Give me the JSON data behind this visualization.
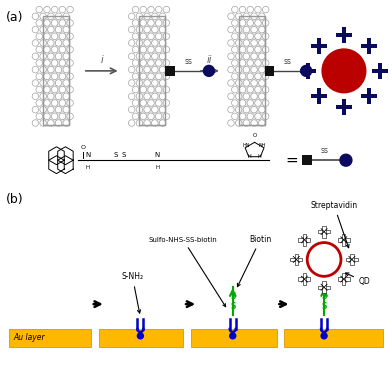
{
  "fig_width": 3.92,
  "fig_height": 3.74,
  "dpi": 100,
  "bg_color": "#ffffff",
  "label_a": "(a)",
  "label_b": "(b)",
  "cnt_fill": "#e8e8e8",
  "cnt_edge": "#999999",
  "cnt_line_color": "#aaaaaa",
  "black_sq_color": "#111111",
  "ss_color": "#444444",
  "biotin_dot_color": "#0a0a5e",
  "qd_red_color": "#bb0000",
  "qd_gear_color": "#0a0a5e",
  "arrow_gray": "#555555",
  "au_color": "#FFB800",
  "au_edge_color": "#CC8800",
  "blue_color": "#0000cc",
  "green_color": "#00aa00",
  "step_i": "i",
  "step_ii": "ii",
  "ss_text": "ss",
  "au_text": "Au layer",
  "snh2_text": "S-NH₂",
  "sulfo_text": "Sulfo-NHS-SS-biotin",
  "biotin_text": "Biotin",
  "streptavidin_text": "Streptavidin",
  "qd_text": "QD"
}
